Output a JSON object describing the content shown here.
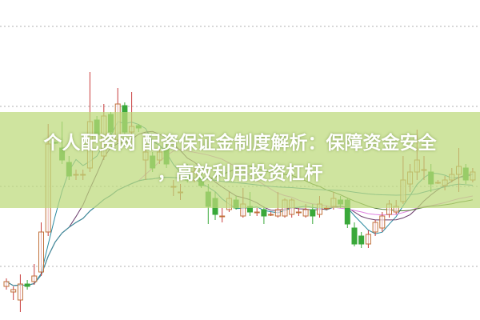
{
  "title": {
    "line1": "个人配资网 配资保证金制度解析：保障资金安全",
    "line2": "，高效利用投资杠杆"
  },
  "colors": {
    "banner": "#bcda7a",
    "up_candle": "#c0703a",
    "up_wick": "#c83c3c",
    "down_candle": "#3aa83a",
    "grid": "#b0b0b0"
  },
  "chart_data": {
    "type": "candlestick",
    "title": "",
    "xlabel": "",
    "ylabel": "",
    "ylim": [
      0,
      40
    ],
    "grid": true,
    "ohlc_fields": [
      "open",
      "close",
      "high",
      "low"
    ],
    "candles": [
      [
        4.2,
        4.8,
        5.2,
        3.8
      ],
      [
        3.5,
        3.8,
        4.2,
        2.5
      ],
      [
        2.5,
        4.5,
        5.7,
        1.0
      ],
      [
        4.5,
        4.2,
        5.0,
        3.8
      ],
      [
        4.8,
        5.5,
        7.0,
        4.4
      ],
      [
        6.0,
        11.0,
        12.2,
        5.5
      ],
      [
        11.0,
        22.0,
        24.5,
        10.5
      ],
      [
        22.2,
        22.1,
        22.3,
        22.0
      ],
      [
        21.5,
        20.0,
        24.8,
        19.5
      ],
      [
        19.7,
        18.0,
        20.5,
        17.5
      ],
      [
        18.2,
        18.2,
        18.8,
        17.5
      ],
      [
        18.2,
        18.2,
        18.8,
        17.5
      ],
      [
        19.0,
        24.8,
        31.0,
        18.5
      ],
      [
        25.0,
        23.2,
        25.5,
        22.8
      ],
      [
        20.5,
        25.5,
        27.0,
        20.0
      ],
      [
        25.7,
        23.5,
        26.0,
        23.2
      ],
      [
        22.5,
        27.0,
        29.0,
        22.2
      ],
      [
        26.8,
        23.5,
        27.2,
        23.0
      ],
      [
        23.5,
        24.2,
        28.5,
        23.0
      ],
      [
        24.3,
        24.0,
        24.5,
        23.5
      ],
      [
        20.0,
        21.0,
        23.0,
        17.5
      ],
      [
        20.5,
        19.0,
        21.0,
        18.5
      ],
      [
        20.0,
        21.0,
        21.5,
        19.5
      ],
      [
        21.5,
        19.5,
        22.0,
        19.0
      ],
      [
        16.7,
        16.7,
        17.5,
        15.5
      ],
      [
        16.0,
        16.0,
        17.0,
        15.0
      ],
      [
        18.5,
        17.5,
        19.5,
        17.2
      ],
      [
        17.5,
        18.5,
        19.0,
        17.2
      ],
      [
        17.8,
        16.8,
        18.5,
        16.5
      ],
      [
        16.0,
        14.2,
        17.0,
        12.0
      ],
      [
        15.2,
        13.2,
        16.0,
        12.5
      ],
      [
        13.0,
        13.0,
        14.0,
        12.2
      ],
      [
        13.8,
        15.2,
        16.0,
        13.5
      ],
      [
        15.0,
        14.0,
        15.5,
        13.8
      ],
      [
        13.0,
        14.5,
        16.5,
        12.8
      ],
      [
        14.2,
        13.5,
        16.0,
        13.0
      ],
      [
        13.5,
        13.5,
        14.0,
        13.0
      ],
      [
        13.8,
        13.0,
        14.2,
        12.0
      ],
      [
        13.2,
        13.2,
        13.5,
        13.0
      ],
      [
        13.0,
        13.8,
        16.0,
        12.8
      ],
      [
        13.0,
        15.0,
        15.2,
        12.8
      ],
      [
        13.2,
        15.0,
        15.2,
        12.8
      ],
      [
        13.5,
        13.5,
        14.0,
        13.0
      ],
      [
        13.0,
        13.8,
        14.5,
        12.8
      ],
      [
        13.8,
        13.0,
        14.5,
        12.0
      ],
      [
        13.2,
        14.5,
        15.5,
        12.8
      ],
      [
        14.0,
        14.0,
        14.3,
        13.7
      ],
      [
        14.2,
        15.2,
        16.0,
        13.8
      ],
      [
        15.0,
        14.5,
        15.5,
        14.0
      ],
      [
        15.0,
        12.0,
        15.2,
        11.5
      ],
      [
        11.5,
        9.5,
        12.2,
        9.2
      ],
      [
        10.5,
        9.5,
        11.0,
        9.0
      ],
      [
        9.5,
        10.7,
        11.2,
        9.0
      ],
      [
        11.0,
        12.2,
        12.5,
        10.5
      ],
      [
        11.5,
        13.0,
        13.5,
        11.0
      ],
      [
        13.2,
        14.5,
        15.0,
        12.8
      ],
      [
        13.5,
        14.2,
        15.0,
        13.2
      ],
      [
        14.8,
        17.5,
        20.5,
        14.5
      ],
      [
        17.0,
        18.5,
        19.5,
        16.0
      ],
      [
        18.5,
        20.0,
        23.8,
        17.5
      ],
      [
        18.8,
        18.8,
        20.5,
        17.5
      ],
      [
        18.5,
        17.0,
        19.5,
        16.0
      ],
      [
        17.2,
        17.2,
        17.5,
        17.0
      ],
      [
        16.8,
        17.5,
        18.0,
        16.2
      ],
      [
        17.5,
        18.2,
        19.0,
        17.2
      ],
      [
        18.2,
        19.2,
        21.5,
        16.0
      ],
      [
        19.0,
        17.5,
        19.5,
        17.0
      ],
      [
        17.5,
        18.5,
        19.0,
        17.2
      ]
    ],
    "moving_averages": [
      {
        "period": 5,
        "color": "#2a8aa0"
      },
      {
        "period": 10,
        "color": "#6a3a6a"
      },
      {
        "period": 20,
        "color": "#e080e0"
      },
      {
        "period": 30,
        "color": "#4f7a2f"
      },
      {
        "period": 60,
        "color": "#3a90a8"
      }
    ]
  }
}
